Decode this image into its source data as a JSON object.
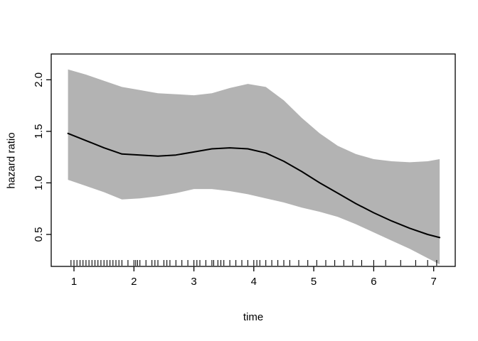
{
  "figure": {
    "background": "#ffffff"
  },
  "chart_data": {
    "type": "line",
    "title": "",
    "xlabel": "time",
    "ylabel": "hazard ratio",
    "xlim": [
      0.62,
      7.36
    ],
    "ylim": [
      0.19,
      2.25
    ],
    "xticks": [
      1,
      2,
      3,
      4,
      5,
      6,
      7
    ],
    "xtick_labels": [
      "1",
      "2",
      "3",
      "4",
      "5",
      "6",
      "7"
    ],
    "yticks": [
      0.5,
      1.0,
      1.5,
      2.0
    ],
    "ytick_labels": [
      "0.5",
      "1.0",
      "1.5",
      "2.0"
    ],
    "grid": false,
    "legend": "none",
    "band_color": "#b3b3b3",
    "line_color": "#000000",
    "series": [
      {
        "name": "hazard ratio estimate",
        "x": [
          0.9,
          1.2,
          1.5,
          1.8,
          2.1,
          2.4,
          2.7,
          3.0,
          3.3,
          3.6,
          3.9,
          4.2,
          4.5,
          4.8,
          5.1,
          5.4,
          5.7,
          6.0,
          6.3,
          6.6,
          6.9,
          7.1
        ],
        "values": [
          1.48,
          1.41,
          1.34,
          1.28,
          1.27,
          1.26,
          1.27,
          1.3,
          1.33,
          1.34,
          1.33,
          1.29,
          1.21,
          1.11,
          1.0,
          0.9,
          0.8,
          0.71,
          0.63,
          0.56,
          0.5,
          0.47
        ]
      },
      {
        "name": "upper confidence band",
        "x": [
          0.9,
          1.2,
          1.5,
          1.8,
          2.1,
          2.4,
          2.7,
          3.0,
          3.3,
          3.6,
          3.9,
          4.2,
          4.5,
          4.8,
          5.1,
          5.4,
          5.7,
          6.0,
          6.3,
          6.6,
          6.9,
          7.1
        ],
        "values": [
          2.1,
          2.05,
          1.99,
          1.93,
          1.9,
          1.87,
          1.86,
          1.85,
          1.87,
          1.92,
          1.96,
          1.93,
          1.8,
          1.63,
          1.48,
          1.36,
          1.28,
          1.23,
          1.21,
          1.2,
          1.21,
          1.23
        ]
      },
      {
        "name": "lower confidence band",
        "x": [
          0.9,
          1.2,
          1.5,
          1.8,
          2.1,
          2.4,
          2.7,
          3.0,
          3.3,
          3.6,
          3.9,
          4.2,
          4.5,
          4.8,
          5.1,
          5.4,
          5.7,
          6.0,
          6.3,
          6.6,
          6.9,
          7.1
        ],
        "values": [
          1.03,
          0.97,
          0.91,
          0.84,
          0.85,
          0.87,
          0.9,
          0.94,
          0.94,
          0.92,
          0.89,
          0.85,
          0.81,
          0.76,
          0.72,
          0.67,
          0.6,
          0.52,
          0.44,
          0.36,
          0.27,
          0.21
        ]
      }
    ],
    "rug_x": [
      0.95,
      1.0,
      1.05,
      1.1,
      1.15,
      1.2,
      1.25,
      1.3,
      1.35,
      1.4,
      1.45,
      1.5,
      1.55,
      1.6,
      1.65,
      1.7,
      1.75,
      1.8,
      1.9,
      2.0,
      2.03,
      2.06,
      2.1,
      2.2,
      2.3,
      2.35,
      2.4,
      2.5,
      2.55,
      2.6,
      2.7,
      2.8,
      2.9,
      3.0,
      3.05,
      3.1,
      3.2,
      3.3,
      3.33,
      3.4,
      3.45,
      3.5,
      3.6,
      3.7,
      3.8,
      3.9,
      4.0,
      4.05,
      4.1,
      4.2,
      4.3,
      4.4,
      4.5,
      4.6,
      4.75,
      4.9,
      5.05,
      5.2,
      5.35,
      5.5,
      5.65,
      5.8,
      6.0,
      6.2,
      6.45,
      6.7,
      6.9,
      7.05
    ]
  }
}
